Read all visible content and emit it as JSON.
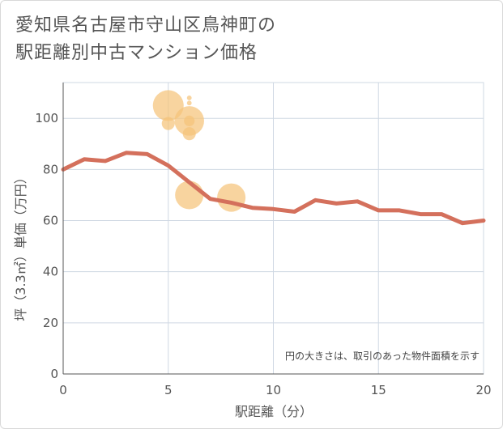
{
  "chart_data": {
    "type": "line",
    "title_line1": "愛知県名古屋市守山区鳥神町の",
    "title_line2": "駅距離別中古マンション価格",
    "xlabel": "駅距離（分）",
    "ylabel": "坪（3.3㎡）単価（万円）",
    "xlim": [
      0,
      20
    ],
    "ylim": [
      0,
      114
    ],
    "xticks": [
      0,
      5,
      10,
      15,
      20
    ],
    "yticks": [
      0,
      20,
      40,
      60,
      80,
      100
    ],
    "grid": true,
    "note": "円の大きさは、取引のあった物件面積を示す",
    "line_color": "#d4705c",
    "bubble_color": "#f5c47a",
    "series": [
      {
        "name": "average",
        "x": [
          0,
          1,
          2,
          3,
          4,
          5,
          6,
          7,
          8,
          9,
          10,
          11,
          12,
          13,
          14,
          15,
          16,
          17,
          18,
          19,
          20
        ],
        "values": [
          80,
          84,
          83.3,
          86.5,
          86,
          81.5,
          75,
          68.5,
          67,
          65,
          64.5,
          63.5,
          68,
          66.7,
          67.5,
          64,
          64,
          62.5,
          62.5,
          59,
          60
        ]
      }
    ],
    "bubbles": [
      {
        "x": 5,
        "y": 105,
        "size": 5.2
      },
      {
        "x": 5,
        "y": 98,
        "size": 2.2
      },
      {
        "x": 6,
        "y": 108,
        "size": 0.8
      },
      {
        "x": 6,
        "y": 106,
        "size": 0.8
      },
      {
        "x": 6,
        "y": 99,
        "size": 5.0
      },
      {
        "x": 6,
        "y": 99,
        "size": 1.8
      },
      {
        "x": 6,
        "y": 94,
        "size": 2.2
      },
      {
        "x": 6,
        "y": 70,
        "size": 4.8
      },
      {
        "x": 8,
        "y": 69,
        "size": 4.8
      }
    ]
  }
}
